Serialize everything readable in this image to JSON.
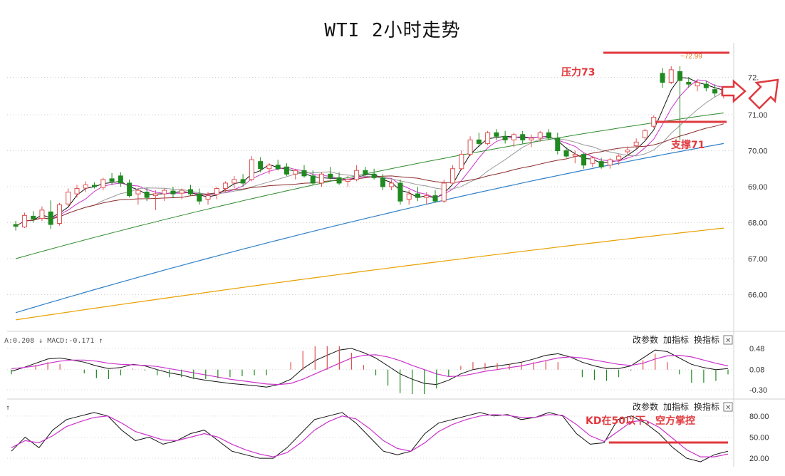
{
  "title": "WTI 2小时走势",
  "chart_data": [
    {
      "type": "candlestick",
      "yticks": [
        "72.",
        "71.00",
        "70.00",
        "69.00",
        "68.00",
        "67.00",
        "66.00"
      ],
      "ylim": [
        65.0,
        73.0
      ],
      "high_label": "72.99",
      "n_bars": 82,
      "ohlc": [
        [
          67.95,
          68.05,
          67.78,
          67.9
        ],
        [
          67.88,
          68.28,
          67.85,
          68.2
        ],
        [
          68.18,
          68.32,
          68.0,
          68.1
        ],
        [
          68.12,
          68.45,
          68.05,
          68.35
        ],
        [
          68.3,
          68.62,
          67.82,
          67.95
        ],
        [
          67.98,
          68.55,
          67.92,
          68.5
        ],
        [
          68.52,
          68.95,
          68.45,
          68.85
        ],
        [
          68.8,
          69.05,
          68.7,
          68.95
        ],
        [
          68.96,
          69.15,
          68.85,
          69.05
        ],
        [
          69.04,
          69.12,
          68.95,
          69.0
        ],
        [
          68.98,
          69.25,
          68.9,
          69.2
        ],
        [
          69.22,
          69.38,
          69.05,
          69.15
        ],
        [
          69.3,
          69.4,
          69.0,
          69.1
        ],
        [
          69.1,
          69.2,
          68.7,
          68.75
        ],
        [
          68.8,
          68.95,
          68.5,
          68.9
        ],
        [
          68.85,
          68.98,
          68.6,
          68.7
        ],
        [
          68.75,
          68.9,
          68.35,
          68.8
        ],
        [
          68.8,
          68.95,
          68.6,
          68.9
        ],
        [
          68.88,
          69.0,
          68.7,
          68.8
        ],
        [
          68.82,
          68.95,
          68.65,
          68.9
        ],
        [
          68.92,
          69.05,
          68.75,
          68.8
        ],
        [
          68.8,
          68.95,
          68.5,
          68.6
        ],
        [
          68.65,
          68.85,
          68.5,
          68.75
        ],
        [
          68.78,
          69.0,
          68.65,
          68.95
        ],
        [
          68.95,
          69.15,
          68.85,
          69.1
        ],
        [
          69.1,
          69.3,
          68.95,
          69.2
        ],
        [
          69.2,
          69.35,
          69.0,
          69.1
        ],
        [
          69.2,
          69.85,
          69.15,
          69.75
        ],
        [
          69.7,
          69.82,
          69.4,
          69.5
        ],
        [
          69.5,
          69.65,
          69.35,
          69.6
        ],
        [
          69.6,
          69.75,
          69.45,
          69.5
        ],
        [
          69.55,
          69.65,
          69.3,
          69.35
        ],
        [
          69.35,
          69.5,
          69.2,
          69.45
        ],
        [
          69.45,
          69.6,
          69.25,
          69.3
        ],
        [
          69.3,
          69.45,
          69.05,
          69.1
        ],
        [
          69.1,
          69.4,
          69.0,
          69.35
        ],
        [
          69.35,
          69.55,
          69.2,
          69.25
        ],
        [
          69.25,
          69.4,
          69.05,
          69.1
        ],
        [
          69.15,
          69.3,
          69.0,
          69.2
        ],
        [
          69.2,
          69.6,
          69.15,
          69.45
        ],
        [
          69.45,
          69.55,
          69.3,
          69.35
        ],
        [
          69.35,
          69.5,
          69.2,
          69.25
        ],
        [
          69.25,
          69.35,
          68.9,
          69.0
        ],
        [
          69.0,
          69.2,
          68.9,
          69.1
        ],
        [
          69.1,
          69.2,
          68.5,
          68.6
        ],
        [
          68.65,
          68.9,
          68.5,
          68.8
        ],
        [
          68.8,
          69.0,
          68.6,
          68.7
        ],
        [
          68.7,
          68.85,
          68.5,
          68.75
        ],
        [
          68.75,
          68.9,
          68.55,
          68.6
        ],
        [
          68.6,
          69.2,
          68.55,
          69.1
        ],
        [
          69.1,
          69.6,
          69.05,
          69.5
        ],
        [
          69.5,
          70.0,
          69.45,
          69.9
        ],
        [
          69.9,
          70.4,
          69.85,
          70.3
        ],
        [
          70.3,
          70.5,
          70.1,
          70.2
        ],
        [
          70.2,
          70.55,
          70.15,
          70.5
        ],
        [
          70.5,
          70.6,
          70.3,
          70.4
        ],
        [
          70.4,
          70.55,
          70.2,
          70.3
        ],
        [
          70.3,
          70.5,
          70.1,
          70.45
        ],
        [
          70.45,
          70.55,
          70.2,
          70.3
        ],
        [
          70.3,
          70.45,
          70.1,
          70.35
        ],
        [
          70.35,
          70.55,
          70.25,
          70.5
        ],
        [
          70.5,
          70.6,
          70.3,
          70.35
        ],
        [
          70.35,
          70.5,
          69.9,
          70.0
        ],
        [
          70.0,
          70.1,
          69.8,
          69.85
        ],
        [
          69.85,
          70.0,
          69.65,
          69.9
        ],
        [
          69.9,
          69.95,
          69.5,
          69.6
        ],
        [
          69.65,
          69.85,
          69.55,
          69.8
        ],
        [
          69.7,
          69.8,
          69.5,
          69.55
        ],
        [
          69.6,
          69.8,
          69.5,
          69.75
        ],
        [
          69.75,
          69.9,
          69.6,
          69.85
        ],
        [
          69.85,
          70.0,
          69.75,
          69.9
        ],
        [
          69.9,
          70.1,
          69.8,
          70.0
        ],
        [
          70.0,
          70.25,
          69.95,
          70.2
        ],
        [
          70.2,
          70.5,
          70.15,
          70.45
        ],
        [
          70.45,
          70.6,
          70.05,
          70.2
        ],
        [
          70.25,
          70.7,
          70.2,
          70.6
        ],
        [
          70.6,
          70.75,
          68.7,
          70.35
        ],
        [
          70.35,
          70.5,
          70.2,
          70.3
        ],
        [
          70.3,
          70.45,
          70.15,
          70.4
        ],
        [
          70.4,
          70.5,
          70.2,
          70.3
        ],
        [
          70.3,
          70.45,
          70.1,
          70.2
        ],
        [
          70.2,
          70.4,
          70.1,
          70.35
        ]
      ],
      "ma_colors": [
        "#111111",
        "#cc33cc",
        "#999999",
        "#8b2c2c",
        "#2e8b2e",
        "#2f7fc8",
        "#e8a000"
      ],
      "annotations": [
        {
          "text": "压力73",
          "color": "#e0393e"
        },
        {
          "text": "支撑71",
          "color": "#e0393e"
        }
      ]
    },
    {
      "type": "line+bar",
      "header": "A:0.208 ↓ MACD:-0.171 ↑",
      "yticks": [
        "0.48",
        "0.08",
        "-0.30"
      ],
      "ylim": [
        -0.42,
        0.6
      ],
      "dif": [
        0.05,
        0.12,
        0.2,
        0.28,
        0.3,
        0.26,
        0.22,
        0.15,
        0.1,
        0.12,
        0.18,
        0.15,
        0.08,
        0.02,
        -0.02,
        -0.08,
        -0.12,
        -0.15,
        -0.18,
        -0.2,
        -0.22,
        -0.25,
        -0.2,
        -0.1,
        0.1,
        0.25,
        0.35,
        0.45,
        0.48,
        0.4,
        0.3,
        0.15,
        0.0,
        -0.1,
        -0.18,
        -0.2,
        -0.12,
        0.0,
        0.08,
        0.12,
        0.15,
        0.18,
        0.22,
        0.28,
        0.35,
        0.38,
        0.32,
        0.22,
        0.15,
        0.1,
        0.1,
        0.15,
        0.3,
        0.45,
        0.42,
        0.3,
        0.18,
        0.12,
        0.08,
        0.1
      ],
      "dea": [
        0.1,
        0.12,
        0.15,
        0.2,
        0.24,
        0.26,
        0.26,
        0.24,
        0.2,
        0.18,
        0.17,
        0.16,
        0.14,
        0.1,
        0.06,
        0.02,
        -0.02,
        -0.06,
        -0.1,
        -0.13,
        -0.16,
        -0.19,
        -0.2,
        -0.18,
        -0.1,
        0.0,
        0.1,
        0.2,
        0.3,
        0.35,
        0.36,
        0.32,
        0.25,
        0.16,
        0.08,
        0.0,
        -0.05,
        -0.04,
        0.0,
        0.05,
        0.08,
        0.12,
        0.15,
        0.2,
        0.25,
        0.3,
        0.32,
        0.3,
        0.26,
        0.22,
        0.18,
        0.16,
        0.2,
        0.28,
        0.34,
        0.35,
        0.32,
        0.26,
        0.2,
        0.15
      ],
      "toolbar": [
        "改参数",
        "加指标",
        "换指标"
      ]
    },
    {
      "type": "line",
      "header": "↑",
      "yticks": [
        "80.00",
        "50.00",
        "20.00"
      ],
      "ylim": [
        10,
        95
      ],
      "k": [
        30,
        50,
        35,
        60,
        75,
        80,
        85,
        80,
        60,
        45,
        50,
        40,
        45,
        55,
        60,
        45,
        30,
        25,
        20,
        20,
        35,
        55,
        75,
        80,
        85,
        70,
        50,
        30,
        25,
        30,
        55,
        70,
        75,
        80,
        85,
        80,
        82,
        75,
        78,
        85,
        80,
        55,
        40,
        42,
        75,
        80,
        70,
        55,
        35,
        20,
        15,
        25,
        30
      ],
      "d": [
        35,
        45,
        42,
        52,
        65,
        72,
        78,
        80,
        70,
        58,
        52,
        46,
        45,
        50,
        55,
        50,
        40,
        32,
        26,
        22,
        28,
        42,
        60,
        72,
        80,
        76,
        62,
        45,
        34,
        30,
        42,
        58,
        68,
        75,
        80,
        82,
        81,
        78,
        78,
        82,
        81,
        68,
        52,
        44,
        58,
        72,
        74,
        64,
        48,
        32,
        22,
        22,
        26
      ],
      "toolbar": [
        "改参数",
        "加指标",
        "换指标"
      ],
      "annotation": "KD在50以下，空方掌控"
    }
  ]
}
